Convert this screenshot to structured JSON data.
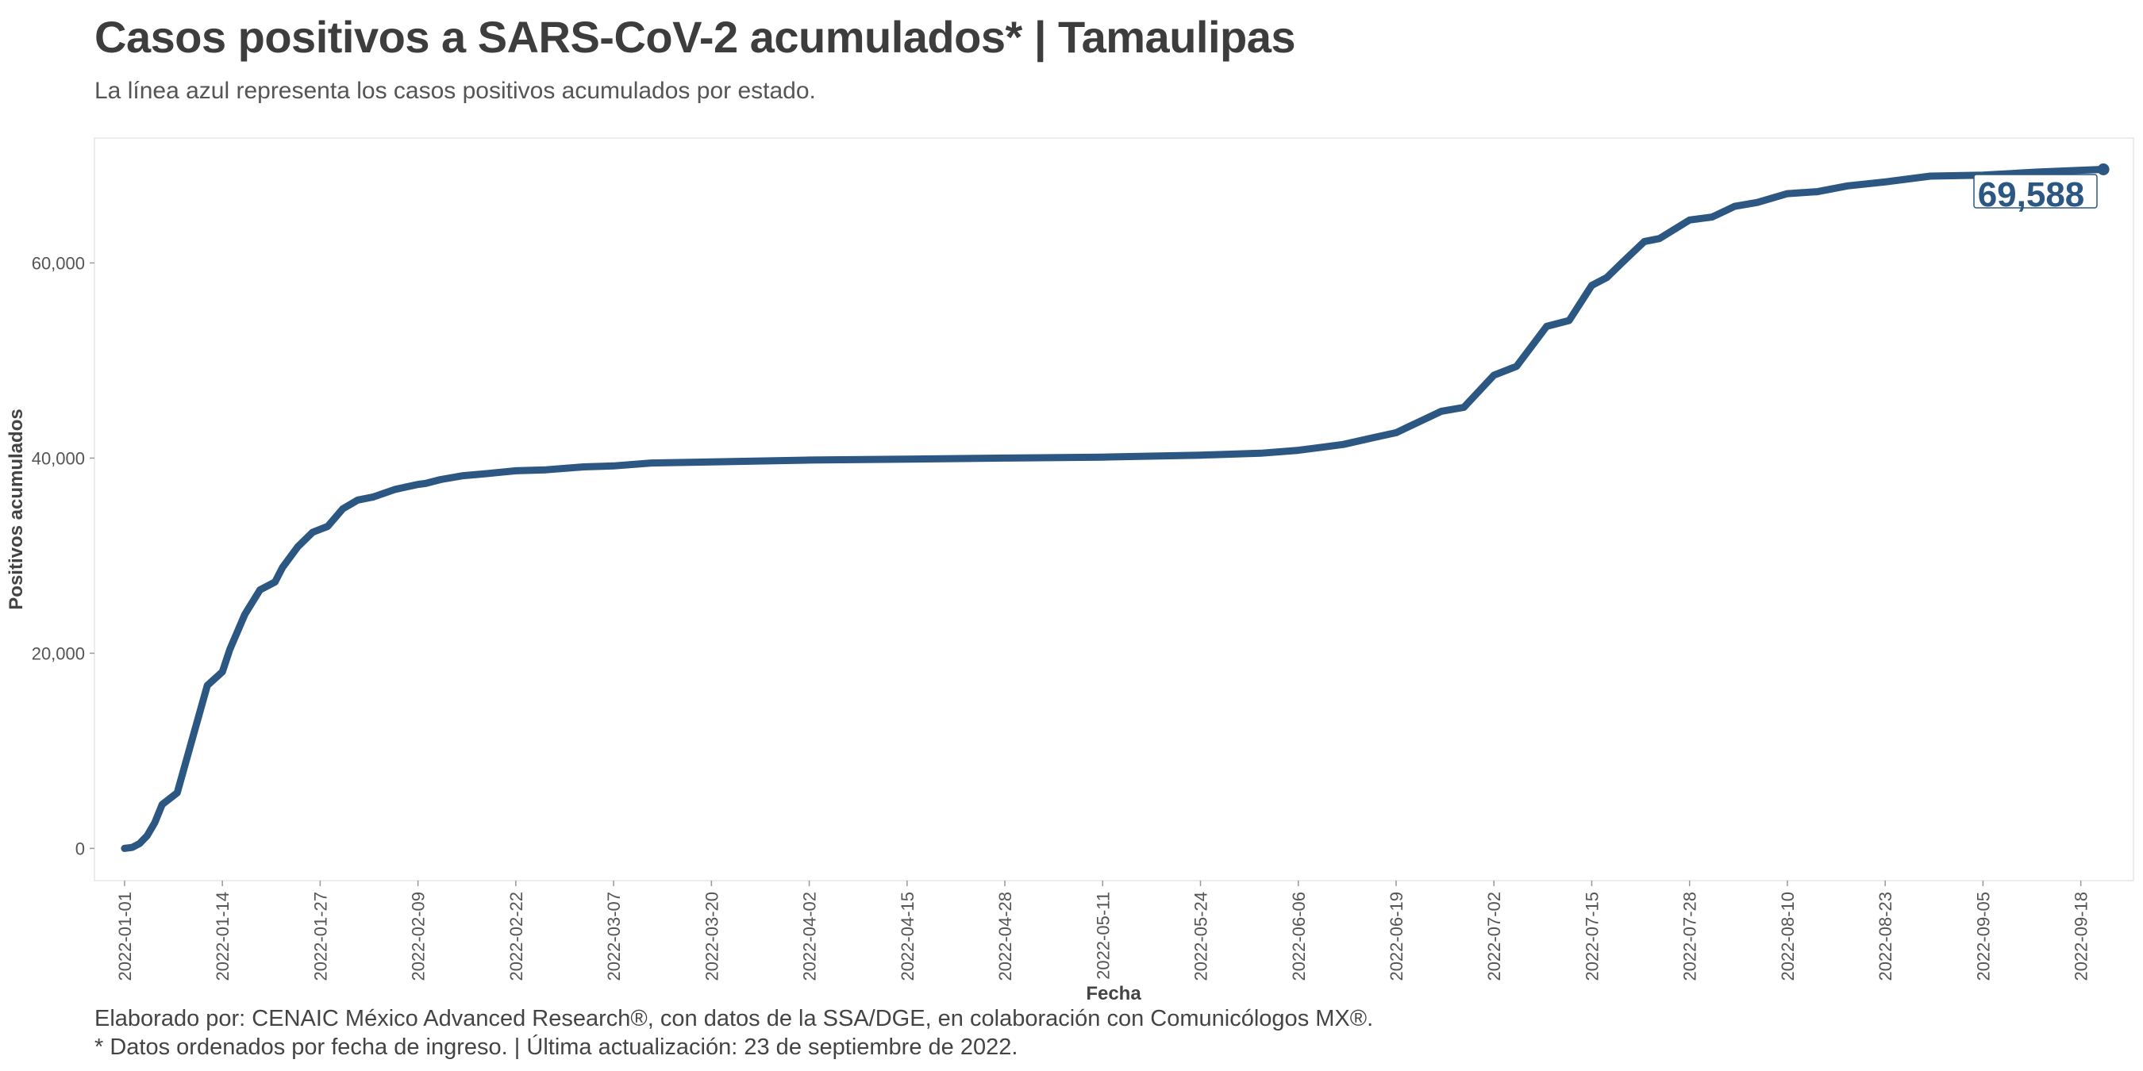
{
  "header": {
    "title": "Casos positivos a SARS-CoV-2 acumulados* | Tamaulipas",
    "subtitle": "La línea azul representa los casos positivos acumulados por estado."
  },
  "footer": {
    "caption_1": "Elaborado por: CENAIC México Advanced Research®, con datos de la SSA/DGE, en colaboración con Comunicólogos MX®.",
    "caption_2": "* Datos ordenados por fecha de ingreso. | Última actualización: 23 de septiembre de 2022."
  },
  "colors": {
    "line": "#2b5782",
    "label_text": "#2b5782",
    "axis_text": "#555555",
    "panel_border": "#e6e6e6"
  },
  "chart_data": {
    "type": "line",
    "title": "Casos positivos a SARS-CoV-2 acumulados* | Tamaulipas",
    "subtitle": "La línea azul representa los casos positivos acumulados por estado.",
    "xlabel": "Fecha",
    "ylabel": "Positivos acumulados",
    "xlim": [
      "2021-12-28",
      "2022-09-25"
    ],
    "ylim": [
      -3300,
      72800
    ],
    "grid": false,
    "legend": "none",
    "x_ticks": [
      "2022-01-01",
      "2022-01-14",
      "2022-01-27",
      "2022-02-09",
      "2022-02-22",
      "2022-03-07",
      "2022-03-20",
      "2022-04-02",
      "2022-04-15",
      "2022-04-28",
      "2022-05-11",
      "2022-05-24",
      "2022-06-06",
      "2022-06-19",
      "2022-07-02",
      "2022-07-15",
      "2022-07-28",
      "2022-08-10",
      "2022-08-23",
      "2022-09-05",
      "2022-09-18"
    ],
    "y_ticks": [
      0,
      20000,
      40000,
      60000
    ],
    "y_tick_labels": [
      "0",
      "20,000",
      "40,000",
      "60,000"
    ],
    "end_label": "69,588",
    "series": [
      {
        "x": [
          "2022-01-01",
          "2022-01-02",
          "2022-01-03",
          "2022-01-04",
          "2022-01-05",
          "2022-01-06",
          "2022-01-08",
          "2022-01-10",
          "2022-01-12",
          "2022-01-14",
          "2022-01-15",
          "2022-01-17",
          "2022-01-19",
          "2022-01-21",
          "2022-01-22",
          "2022-01-24",
          "2022-01-26",
          "2022-01-27",
          "2022-01-28",
          "2022-01-30",
          "2022-02-01",
          "2022-02-03",
          "2022-02-06",
          "2022-02-09",
          "2022-02-10",
          "2022-02-12",
          "2022-02-15",
          "2022-02-18",
          "2022-02-22",
          "2022-02-26",
          "2022-03-03",
          "2022-03-07",
          "2022-03-12",
          "2022-03-20",
          "2022-04-02",
          "2022-04-15",
          "2022-04-28",
          "2022-05-11",
          "2022-05-24",
          "2022-06-01",
          "2022-06-06",
          "2022-06-09",
          "2022-06-12",
          "2022-06-16",
          "2022-06-19",
          "2022-06-22",
          "2022-06-25",
          "2022-06-28",
          "2022-07-02",
          "2022-07-05",
          "2022-07-09",
          "2022-07-12",
          "2022-07-15",
          "2022-07-17",
          "2022-07-19",
          "2022-07-22",
          "2022-07-24",
          "2022-07-28",
          "2022-07-31",
          "2022-08-03",
          "2022-08-06",
          "2022-08-10",
          "2022-08-14",
          "2022-08-18",
          "2022-08-23",
          "2022-08-29",
          "2022-09-05",
          "2022-09-12",
          "2022-09-18",
          "2022-09-21"
        ],
        "y": [
          0,
          100,
          500,
          1300,
          2600,
          4500,
          5700,
          11200,
          16700,
          18100,
          20400,
          24000,
          26500,
          27300,
          28800,
          30900,
          32400,
          32700,
          33000,
          34800,
          35700,
          36000,
          36800,
          37300,
          37400,
          37800,
          38200,
          38400,
          38700,
          38800,
          39100,
          39200,
          39500,
          39600,
          39800,
          39900,
          40000,
          40100,
          40300,
          40500,
          40800,
          41100,
          41400,
          42100,
          42600,
          43700,
          44800,
          45200,
          48500,
          49400,
          53500,
          54100,
          57700,
          58500,
          60000,
          62200,
          62500,
          64400,
          64700,
          65800,
          66200,
          67100,
          67300,
          67900,
          68300,
          68900,
          69000,
          69300,
          69500,
          69588
        ]
      }
    ]
  }
}
